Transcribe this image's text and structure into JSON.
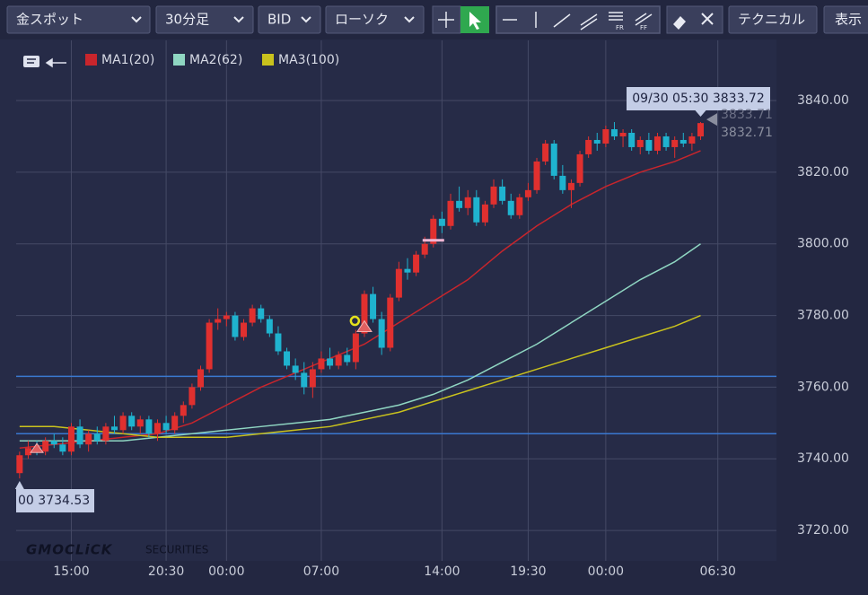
{
  "toolbar": {
    "symbol": "金スポット",
    "timeframe": "30分足",
    "price_type": "BID",
    "chart_style": "ローソク",
    "technical": "テクニカル",
    "display": "表示"
  },
  "chart_data": {
    "type": "candlestick",
    "up_color": "#e0302f",
    "down_color": "#1fb3cf",
    "candles": [
      [
        3736,
        3742,
        3734.53,
        3741
      ],
      [
        3741,
        3745,
        3740,
        3743
      ],
      [
        3743,
        3745,
        3741,
        3742
      ],
      [
        3742,
        3746,
        3741,
        3745
      ],
      [
        3745,
        3747,
        3743,
        3744
      ],
      [
        3744,
        3746,
        3741,
        3742
      ],
      [
        3742,
        3750,
        3741,
        3749
      ],
      [
        3749,
        3751,
        3743,
        3744
      ],
      [
        3744,
        3748,
        3742,
        3747
      ],
      [
        3747,
        3749,
        3744,
        3745
      ],
      [
        3745,
        3750,
        3744,
        3749
      ],
      [
        3749,
        3752,
        3747,
        3748
      ],
      [
        3748,
        3753,
        3747,
        3752
      ],
      [
        3752,
        3753,
        3748,
        3749
      ],
      [
        3749,
        3752,
        3747,
        3751
      ],
      [
        3751,
        3752,
        3746,
        3747
      ],
      [
        3747,
        3751,
        3745,
        3750
      ],
      [
        3750,
        3752,
        3747,
        3748
      ],
      [
        3748,
        3753,
        3747,
        3752
      ],
      [
        3752,
        3756,
        3750,
        3755
      ],
      [
        3755,
        3761,
        3754,
        3760
      ],
      [
        3760,
        3766,
        3759,
        3765
      ],
      [
        3765,
        3779,
        3764,
        3778
      ],
      [
        3778,
        3782,
        3776,
        3779
      ],
      [
        3779,
        3781,
        3777,
        3780
      ],
      [
        3780,
        3781,
        3773,
        3774
      ],
      [
        3774,
        3779,
        3773,
        3778
      ],
      [
        3778,
        3783,
        3777,
        3782
      ],
      [
        3782,
        3783,
        3778,
        3779
      ],
      [
        3779,
        3780,
        3774,
        3775
      ],
      [
        3775,
        3777,
        3769,
        3770
      ],
      [
        3770,
        3771,
        3765,
        3766
      ],
      [
        3766,
        3768,
        3762,
        3764
      ],
      [
        3764,
        3767,
        3758,
        3760
      ],
      [
        3760,
        3767,
        3757,
        3765
      ],
      [
        3765,
        3770,
        3764,
        3768
      ],
      [
        3768,
        3771,
        3765,
        3766
      ],
      [
        3766,
        3770,
        3765,
        3769
      ],
      [
        3769,
        3771,
        3766,
        3767
      ],
      [
        3767,
        3776,
        3765,
        3775
      ],
      [
        3775,
        3787,
        3774,
        3786
      ],
      [
        3786,
        3788,
        3778,
        3779
      ],
      [
        3779,
        3781,
        3769,
        3771
      ],
      [
        3771,
        3786,
        3770,
        3785
      ],
      [
        3785,
        3795,
        3784,
        3793
      ],
      [
        3793,
        3796,
        3790,
        3792
      ],
      [
        3792,
        3798,
        3791,
        3797
      ],
      [
        3797,
        3802,
        3796,
        3800
      ],
      [
        3800,
        3808,
        3799,
        3807
      ],
      [
        3807,
        3809,
        3803,
        3805
      ],
      [
        3805,
        3814,
        3804,
        3812
      ],
      [
        3812,
        3816,
        3809,
        3810
      ],
      [
        3810,
        3815,
        3808,
        3813
      ],
      [
        3813,
        3815,
        3805,
        3806
      ],
      [
        3806,
        3812,
        3805,
        3811
      ],
      [
        3811,
        3818,
        3810,
        3816
      ],
      [
        3816,
        3818,
        3811,
        3812
      ],
      [
        3812,
        3814,
        3807,
        3808
      ],
      [
        3808,
        3814,
        3807,
        3813
      ],
      [
        3813,
        3817,
        3812,
        3815
      ],
      [
        3815,
        3824,
        3814,
        3823
      ],
      [
        3823,
        3829,
        3822,
        3828
      ],
      [
        3828,
        3829,
        3818,
        3819
      ],
      [
        3819,
        3822,
        3814,
        3815
      ],
      [
        3815,
        3818,
        3810,
        3817
      ],
      [
        3817,
        3826,
        3816,
        3825
      ],
      [
        3825,
        3830,
        3824,
        3829
      ],
      [
        3829,
        3831,
        3826,
        3828
      ],
      [
        3828,
        3833,
        3827,
        3832
      ],
      [
        3832,
        3834,
        3829,
        3830
      ],
      [
        3830,
        3832,
        3827,
        3831
      ],
      [
        3831,
        3832,
        3826,
        3827
      ],
      [
        3827,
        3830,
        3825,
        3829
      ],
      [
        3829,
        3831,
        3825,
        3826
      ],
      [
        3826,
        3831,
        3825,
        3830
      ],
      [
        3830,
        3831,
        3826,
        3827
      ],
      [
        3827,
        3830,
        3824,
        3829
      ],
      [
        3829,
        3831,
        3827,
        3828
      ],
      [
        3828,
        3831,
        3826,
        3830
      ],
      [
        3830,
        3834,
        3829,
        3833.72
      ]
    ],
    "lines": [
      {
        "name": "MA1(20)",
        "color": "#c8252c",
        "x": [
          0,
          4,
          8,
          12,
          16,
          20,
          24,
          28,
          32,
          36,
          40,
          44,
          48,
          52,
          56,
          60,
          64,
          68,
          72,
          76,
          79
        ],
        "values": [
          3743,
          3744,
          3745,
          3746,
          3747,
          3750,
          3755,
          3760,
          3764,
          3768,
          3772,
          3778,
          3784,
          3790,
          3798,
          3805,
          3811,
          3816,
          3820,
          3823,
          3826
        ]
      },
      {
        "name": "MA2(62)",
        "color": "#8fd6c2",
        "x": [
          0,
          4,
          8,
          12,
          16,
          20,
          24,
          28,
          32,
          36,
          40,
          44,
          48,
          52,
          56,
          60,
          64,
          68,
          72,
          76,
          79
        ],
        "values": [
          3745,
          3745,
          3745,
          3745,
          3746,
          3747,
          3748,
          3749,
          3750,
          3751,
          3753,
          3755,
          3758,
          3762,
          3767,
          3772,
          3778,
          3784,
          3790,
          3795,
          3800
        ]
      },
      {
        "name": "MA3(100)",
        "color": "#c9c21d",
        "x": [
          0,
          4,
          8,
          12,
          16,
          20,
          24,
          28,
          32,
          36,
          40,
          44,
          48,
          52,
          56,
          60,
          64,
          68,
          72,
          76,
          79
        ],
        "values": [
          3749,
          3749,
          3748,
          3747,
          3746,
          3746,
          3746,
          3747,
          3748,
          3749,
          3751,
          3753,
          3756,
          3759,
          3762,
          3765,
          3768,
          3771,
          3774,
          3777,
          3780
        ]
      }
    ],
    "hlines": [
      3763,
      3747
    ],
    "hline_color": "#3a78d0",
    "xlim": [
      -0.4,
      87.8
    ],
    "xticks": [
      {
        "value": 6,
        "label": "15:00"
      },
      {
        "value": 17,
        "label": "20:30"
      },
      {
        "value": 24,
        "label": "00:00"
      },
      {
        "value": 35,
        "label": "07:00"
      },
      {
        "value": 49,
        "label": "14:00"
      },
      {
        "value": 59,
        "label": "19:30"
      },
      {
        "value": 68,
        "label": "00:00"
      },
      {
        "value": 81,
        "label": "06:30"
      }
    ],
    "ylim": [
      3711.5,
      3856.8
    ],
    "yticks": [
      {
        "value": 3720,
        "label": "3720.00"
      },
      {
        "value": 3740,
        "label": "3740.00"
      },
      {
        "value": 3760,
        "label": "3760.00"
      },
      {
        "value": 3780,
        "label": "3780.00"
      },
      {
        "value": 3800,
        "label": "3800.00"
      },
      {
        "value": 3820,
        "label": "3820.00"
      },
      {
        "value": 3840,
        "label": "3840.00"
      }
    ],
    "grid": true,
    "last_label": "09/30 05:30 3833.72",
    "low_label": "00 3734.53",
    "ask": "3833.71",
    "bid": "3832.71",
    "brand": "GMOCLiCK",
    "brand_sub": "SECURITIES"
  }
}
